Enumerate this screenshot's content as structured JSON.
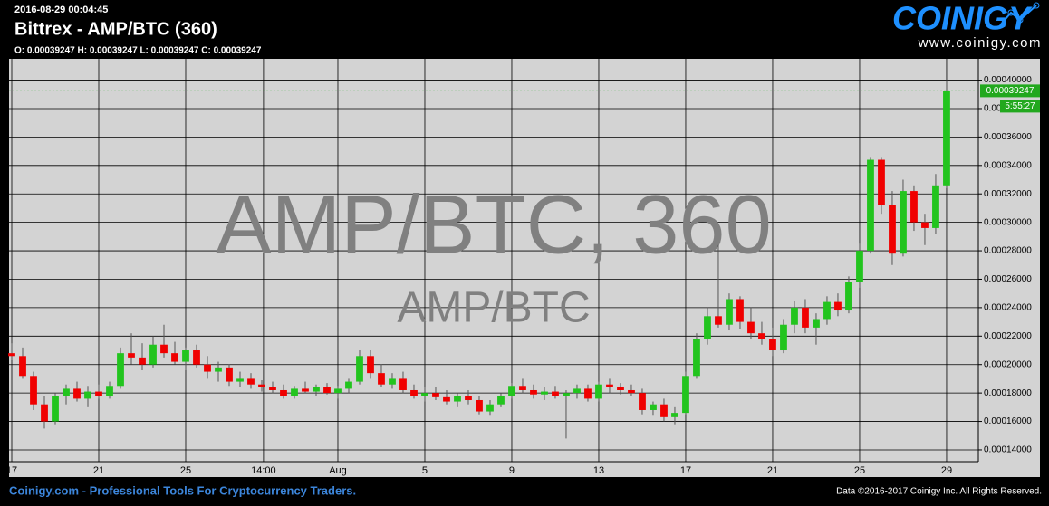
{
  "header": {
    "datetime": "2016-08-29 00:04:45",
    "title": "Bittrex - AMP/BTC (360)",
    "ohlc": "O: 0.00039247 H: 0.00039247 L: 0.00039247 C: 0.00039247",
    "logo": "COINIGY",
    "logo_url": "www.coinigy.com"
  },
  "watermark": {
    "main": "AMP/BTC, 360",
    "sub": "AMP/BTC"
  },
  "footer": {
    "left": "Coinigy.com - Professional Tools For Cryptocurrency Traders.",
    "right": "Data ©2016-2017 Coinigy Inc. All Rights Reserved."
  },
  "chart_data": {
    "type": "candlestick",
    "up_color": "#22c41e",
    "down_color": "#f00000",
    "grid": true,
    "x": [
      0,
      0.5,
      1,
      1.5,
      2,
      2.5,
      3,
      3.5,
      4,
      4.5,
      5,
      5.5,
      6,
      6.5,
      7,
      7.5,
      8,
      8.5,
      9,
      9.5,
      10,
      10.5,
      11,
      11.5,
      12,
      12.5,
      13,
      13.5,
      14,
      14.5,
      15,
      15.5,
      16,
      16.5,
      17,
      17.5,
      18,
      18.5,
      19,
      19.5,
      20,
      20.5,
      21,
      21.5,
      22,
      22.5,
      23,
      23.5,
      24,
      24.5,
      25,
      25.5,
      26,
      26.5,
      27,
      27.5,
      28,
      28.5,
      29,
      29.5,
      30,
      30.5,
      31,
      31.5,
      32,
      32.5,
      33,
      33.5,
      34,
      34.5,
      35,
      35.5,
      36,
      36.5,
      37,
      37.5,
      38,
      38.5,
      39,
      39.5,
      40,
      40.5,
      41,
      41.5,
      42,
      42.5,
      43
    ],
    "open": [
      0.000208,
      0.000206,
      0.000192,
      0.000172,
      0.00016,
      0.000178,
      0.000183,
      0.000176,
      0.000181,
      0.000178,
      0.000185,
      0.000208,
      0.000205,
      0.0002,
      0.000214,
      0.000208,
      0.000202,
      0.00021,
      0.0002,
      0.000195,
      0.000198,
      0.000188,
      0.00019,
      0.000186,
      0.000184,
      0.000182,
      0.000178,
      0.000183,
      0.000181,
      0.000184,
      0.00018,
      0.000183,
      0.000188,
      0.000206,
      0.000194,
      0.000186,
      0.00019,
      0.000182,
      0.000178,
      0.00018,
      0.000177,
      0.000174,
      0.000178,
      0.000175,
      0.000167,
      0.000172,
      0.000178,
      0.000185,
      0.000182,
      0.000179,
      0.000181,
      0.000178,
      0.00018,
      0.000183,
      0.000176,
      0.000186,
      0.000184,
      0.000182,
      0.00018,
      0.000168,
      0.000172,
      0.000163,
      0.000166,
      0.000192,
      0.000218,
      0.000234,
      0.000228,
      0.000246,
      0.00023,
      0.000222,
      0.000218,
      0.00021,
      0.000228,
      0.00024,
      0.000226,
      0.000232,
      0.000244,
      0.000238,
      0.000258,
      0.00028,
      0.000344,
      0.000312,
      0.000278,
      0.000322,
      0.0003,
      0.000296,
      0.000326
    ],
    "high": [
      0.000215,
      0.000212,
      0.000195,
      0.000178,
      0.00018,
      0.000186,
      0.000188,
      0.000185,
      0.000186,
      0.000188,
      0.000212,
      0.000222,
      0.000215,
      0.00022,
      0.000228,
      0.000216,
      0.000212,
      0.000214,
      0.000206,
      0.000202,
      0.0002,
      0.000195,
      0.000194,
      0.000189,
      0.000188,
      0.000186,
      0.000185,
      0.000188,
      0.000186,
      0.000187,
      0.000185,
      0.00019,
      0.00021,
      0.00021,
      0.0002,
      0.000194,
      0.000195,
      0.000186,
      0.000184,
      0.000184,
      0.000182,
      0.00018,
      0.000182,
      0.000178,
      0.000175,
      0.00018,
      0.000187,
      0.00019,
      0.000186,
      0.000184,
      0.000185,
      0.000182,
      0.000186,
      0.000186,
      0.000188,
      0.00019,
      0.000187,
      0.000186,
      0.000183,
      0.000174,
      0.000176,
      0.00017,
      0.000195,
      0.000222,
      0.00024,
      0.000284,
      0.00025,
      0.000248,
      0.00024,
      0.00023,
      0.000226,
      0.000232,
      0.000245,
      0.000246,
      0.000236,
      0.000248,
      0.00025,
      0.000262,
      0.000285,
      0.000346,
      0.000346,
      0.000322,
      0.00033,
      0.000326,
      0.000306,
      0.000334,
      0.0004
    ],
    "low": [
      0.000203,
      0.00019,
      0.000168,
      0.000155,
      0.000158,
      0.000172,
      0.000174,
      0.00017,
      0.000176,
      0.000176,
      0.000183,
      0.0002,
      0.000196,
      0.000198,
      0.000205,
      0.0002,
      0.000196,
      0.000198,
      0.00019,
      0.000188,
      0.000185,
      0.000184,
      0.000183,
      0.000181,
      0.00018,
      0.000176,
      0.000176,
      0.00018,
      0.000178,
      0.000179,
      0.000176,
      0.00018,
      0.000186,
      0.00019,
      0.000184,
      0.000183,
      0.00018,
      0.000176,
      0.000174,
      0.000175,
      0.000172,
      0.00017,
      0.000172,
      0.000165,
      0.000164,
      0.00017,
      0.000176,
      0.00018,
      0.000176,
      0.000175,
      0.000176,
      0.000148,
      0.000176,
      0.000174,
      0.000174,
      0.00018,
      0.000179,
      0.000178,
      0.000165,
      0.000164,
      0.00016,
      0.000158,
      0.000165,
      0.00019,
      0.000214,
      0.000226,
      0.000224,
      0.000225,
      0.000218,
      0.000214,
      0.000206,
      0.000208,
      0.000222,
      0.000222,
      0.000214,
      0.000228,
      0.000234,
      0.000236,
      0.000254,
      0.000278,
      0.000306,
      0.00027,
      0.000276,
      0.000294,
      0.000284,
      0.000292,
      0.000324
    ],
    "close": [
      0.000206,
      0.000192,
      0.000172,
      0.00016,
      0.000178,
      0.000183,
      0.000176,
      0.000181,
      0.000178,
      0.000185,
      0.000208,
      0.000205,
      0.0002,
      0.000214,
      0.000208,
      0.000202,
      0.00021,
      0.0002,
      0.000195,
      0.000198,
      0.000188,
      0.00019,
      0.000186,
      0.000184,
      0.000182,
      0.000178,
      0.000183,
      0.000181,
      0.000184,
      0.00018,
      0.000183,
      0.000188,
      0.000206,
      0.000194,
      0.000186,
      0.00019,
      0.000182,
      0.000178,
      0.00018,
      0.000177,
      0.000174,
      0.000178,
      0.000175,
      0.000167,
      0.000172,
      0.000178,
      0.000185,
      0.000182,
      0.000179,
      0.000181,
      0.000178,
      0.00018,
      0.000183,
      0.000176,
      0.000186,
      0.000184,
      0.000182,
      0.00018,
      0.000168,
      0.000172,
      0.000163,
      0.000166,
      0.000192,
      0.000218,
      0.000234,
      0.000228,
      0.000246,
      0.00023,
      0.000222,
      0.000218,
      0.00021,
      0.000228,
      0.00024,
      0.000226,
      0.000232,
      0.000244,
      0.000238,
      0.000258,
      0.00028,
      0.000344,
      0.000312,
      0.000278,
      0.000322,
      0.0003,
      0.000296,
      0.000326,
      0.00039247
    ],
    "xlim": [
      -0.125,
      44.46
    ],
    "xticks": [
      {
        "value": 0,
        "label": "17"
      },
      {
        "value": 4,
        "label": "21"
      },
      {
        "value": 8,
        "label": "25"
      },
      {
        "value": 11.58,
        "label": "14:00"
      },
      {
        "value": 15,
        "label": "Aug"
      },
      {
        "value": 19,
        "label": "5"
      },
      {
        "value": 23,
        "label": "9"
      },
      {
        "value": 27,
        "label": "13"
      },
      {
        "value": 31,
        "label": "17"
      },
      {
        "value": 35,
        "label": "21"
      },
      {
        "value": 39,
        "label": "25"
      },
      {
        "value": 43,
        "label": "29"
      }
    ],
    "ylim": [
      0.0001317,
      0.000415
    ],
    "yticks": [
      {
        "value": 0.00014,
        "label": "0.00014000"
      },
      {
        "value": 0.00016,
        "label": "0.00016000"
      },
      {
        "value": 0.00018,
        "label": "0.00018000"
      },
      {
        "value": 0.0002,
        "label": "0.00020000"
      },
      {
        "value": 0.00022,
        "label": "0.00022000"
      },
      {
        "value": 0.00024,
        "label": "0.00024000"
      },
      {
        "value": 0.00026,
        "label": "0.00026000"
      },
      {
        "value": 0.00028,
        "label": "0.00028000"
      },
      {
        "value": 0.0003,
        "label": "0.00030000"
      },
      {
        "value": 0.00032,
        "label": "0.00032000"
      },
      {
        "value": 0.00034,
        "label": "0.00034000"
      },
      {
        "value": 0.00036,
        "label": "0.00036000"
      },
      {
        "value": 0.00038,
        "label": "0.00038000"
      },
      {
        "value": 0.0004,
        "label": "0.00040000"
      }
    ],
    "last_price_label": "0.00039247",
    "price_line_color": "#22a81e",
    "countdown": "5:55:27"
  }
}
